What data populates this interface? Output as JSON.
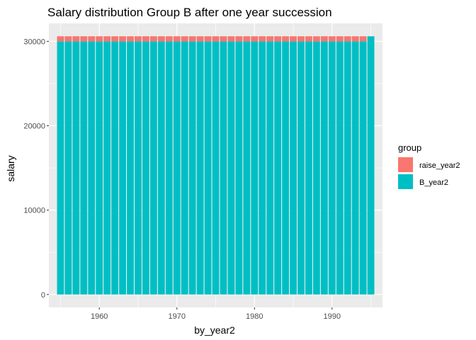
{
  "chart_data": {
    "type": "bar",
    "stacked": true,
    "title": "Salary distribution Group B after one year succession",
    "xlabel": "by_year2",
    "ylabel": "salary",
    "x": [
      1955,
      1956,
      1957,
      1958,
      1959,
      1960,
      1961,
      1962,
      1963,
      1964,
      1965,
      1966,
      1967,
      1968,
      1969,
      1970,
      1971,
      1972,
      1973,
      1974,
      1975,
      1976,
      1977,
      1978,
      1979,
      1980,
      1981,
      1982,
      1983,
      1984,
      1985,
      1986,
      1987,
      1988,
      1989,
      1990,
      1991,
      1992,
      1993,
      1994,
      1995
    ],
    "series": [
      {
        "name": "B_year2",
        "color": "#00bfc4",
        "values": [
          30000,
          30000,
          30000,
          30000,
          30000,
          30000,
          30000,
          30000,
          30000,
          30000,
          30000,
          30000,
          30000,
          30000,
          30000,
          30000,
          30000,
          30000,
          30000,
          30000,
          30000,
          30000,
          30000,
          30000,
          30000,
          30000,
          30000,
          30000,
          30000,
          30000,
          30000,
          30000,
          30000,
          30000,
          30000,
          30000,
          30000,
          30000,
          30000,
          30000,
          30600
        ]
      },
      {
        "name": "raise_year2",
        "color": "#f8766d",
        "values": [
          600,
          600,
          600,
          600,
          600,
          600,
          600,
          600,
          600,
          600,
          600,
          600,
          600,
          600,
          600,
          600,
          600,
          600,
          600,
          600,
          600,
          600,
          600,
          600,
          600,
          600,
          600,
          600,
          600,
          600,
          600,
          600,
          600,
          600,
          600,
          600,
          600,
          600,
          600,
          600,
          0
        ]
      }
    ],
    "xticks": [
      1960,
      1970,
      1980,
      1990
    ],
    "yticks": [
      0,
      10000,
      20000,
      30000
    ],
    "xlim": [
      1953.5,
      1996.5
    ],
    "ylim": [
      -1530,
      32130
    ],
    "grid": true,
    "legend": {
      "title": "group",
      "position": "right",
      "entries": [
        {
          "label": "raise_year2",
          "color": "#f8766d"
        },
        {
          "label": "B_year2",
          "color": "#00bfc4"
        }
      ]
    },
    "panel_background": "#ebebeb",
    "grid_color": "#ffffff"
  }
}
